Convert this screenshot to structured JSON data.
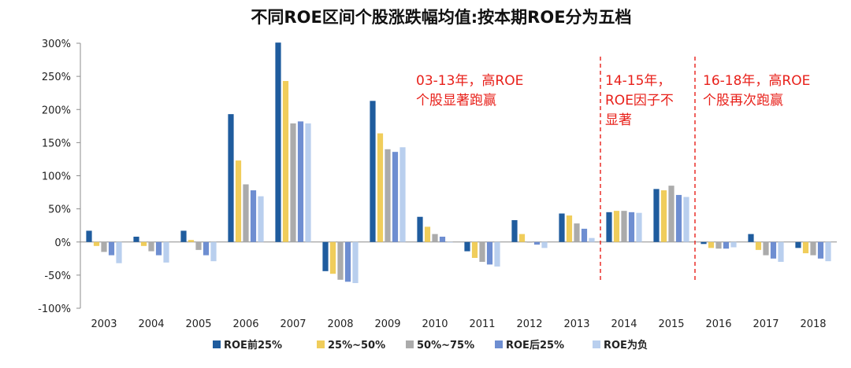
{
  "chart_data": {
    "type": "bar",
    "title": "不同ROE区间个股涨跌幅均值:按本期ROE分为五档",
    "categories": [
      "2003",
      "2004",
      "2005",
      "2006",
      "2007",
      "2008",
      "2009",
      "2010",
      "2011",
      "2012",
      "2013",
      "2014",
      "2015",
      "2016",
      "2017",
      "2018"
    ],
    "y_axis": {
      "min": -100,
      "max": 300,
      "step": 50,
      "tick_labels": [
        "300%",
        "250%",
        "200%",
        "150%",
        "100%",
        "50%",
        "0%",
        "-50%",
        "-100%"
      ]
    },
    "series": [
      {
        "name": "ROE前25%",
        "color": "#1f5c9e",
        "values": [
          17,
          8,
          17,
          193,
          301,
          -44,
          213,
          38,
          -14,
          33,
          43,
          45,
          80,
          -3,
          12,
          -9
        ]
      },
      {
        "name": "25%~50%",
        "color": "#f0cd5b",
        "values": [
          -6,
          -6,
          3,
          123,
          243,
          -48,
          164,
          23,
          -24,
          12,
          40,
          47,
          78,
          -9,
          -12,
          -17
        ]
      },
      {
        "name": "50%~75%",
        "color": "#ababab",
        "values": [
          -15,
          -14,
          -12,
          87,
          179,
          -57,
          140,
          12,
          -30,
          -1,
          28,
          47,
          85,
          -10,
          -20,
          -20
        ]
      },
      {
        "name": "ROE后25%",
        "color": "#6e8ed1",
        "values": [
          -20,
          -20,
          -20,
          78,
          182,
          -60,
          136,
          8,
          -34,
          -4,
          20,
          45,
          71,
          -10,
          -25,
          -25
        ]
      },
      {
        "name": "ROE为负",
        "color": "#b9cfee",
        "values": [
          -32,
          -31,
          -29,
          69,
          179,
          -62,
          143,
          0,
          -37,
          -9,
          6,
          44,
          68,
          -8,
          -30,
          -29
        ]
      }
    ],
    "legend": {
      "position": "bottom"
    },
    "dividers_after": [
      "2013",
      "2015"
    ],
    "annotations": [
      {
        "lines": [
          "03-13年，高ROE",
          "个股显著跑赢"
        ]
      },
      {
        "lines": [
          "14-15年，",
          "ROE因子不",
          "显著"
        ]
      },
      {
        "lines": [
          "16-18年，高ROE",
          "个股再次跑赢"
        ]
      }
    ],
    "grid": false
  }
}
